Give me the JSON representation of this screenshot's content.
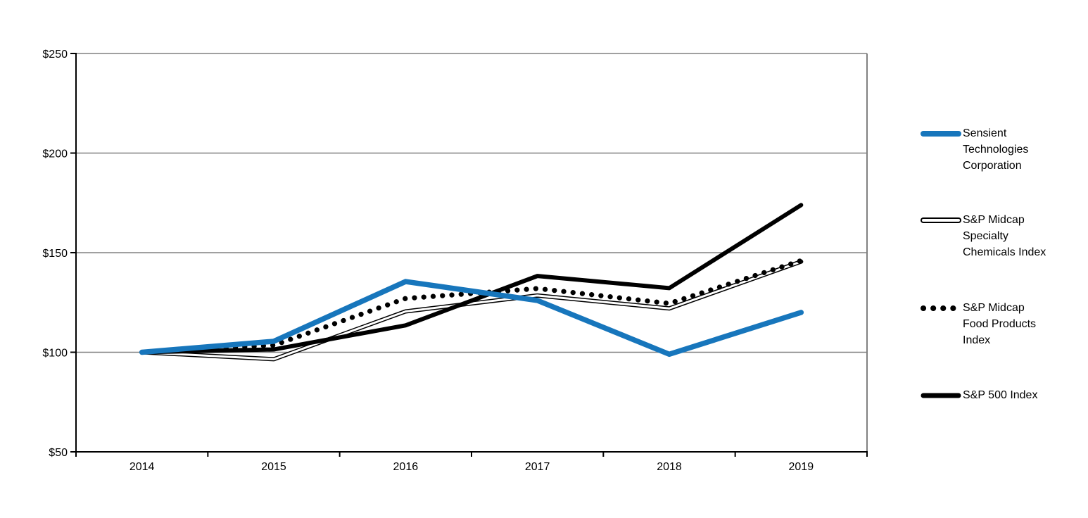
{
  "chart_data": {
    "type": "line",
    "title": "",
    "xlabel": "",
    "ylabel": "",
    "x": [
      2014,
      2015,
      2016,
      2017,
      2018,
      2019
    ],
    "x_tick_labels": [
      "2014",
      "2015",
      "2016",
      "2017",
      "2018",
      "2019"
    ],
    "y_tick_labels": [
      "$50",
      "$100",
      "$150",
      "$200",
      "$250"
    ],
    "y_ticks": [
      50,
      100,
      150,
      200,
      250
    ],
    "ylim": [
      50,
      250
    ],
    "grid": "horizontal",
    "grid_color": "#808080",
    "axis_color": "#000000",
    "legend_position": "right",
    "series": [
      {
        "name": "Sensient Technologies Corporation",
        "legend_lines": "Sensient\nTechnologies\nCorporation",
        "style": "solid-thick",
        "color": "#1776bc",
        "values": [
          100,
          105.5,
          135.5,
          126,
          99,
          120
        ]
      },
      {
        "name": "S&P Midcap Specialty Chemicals Index",
        "legend_lines": "S&P Midcap\nSpecialty\nChemicals Index",
        "style": "double-outline",
        "color": "#000000",
        "values": [
          100,
          96.5,
          120.5,
          128.5,
          122,
          145.5
        ]
      },
      {
        "name": "S&P Midcap Food Products Index",
        "legend_lines": "S&P Midcap\nFood Products\nIndex",
        "style": "dotted",
        "color": "#000000",
        "values": [
          100,
          103.5,
          127,
          132,
          124.5,
          146
        ]
      },
      {
        "name": "S&P 500 Index",
        "legend_lines": "S&P 500 Index",
        "style": "solid",
        "color": "#000000",
        "values": [
          100,
          101.4,
          113.5,
          138.3,
          132.2,
          173.9
        ]
      }
    ]
  },
  "layout_values": {
    "legend_item_tops": [
      178,
      301,
      426,
      550
    ]
  }
}
